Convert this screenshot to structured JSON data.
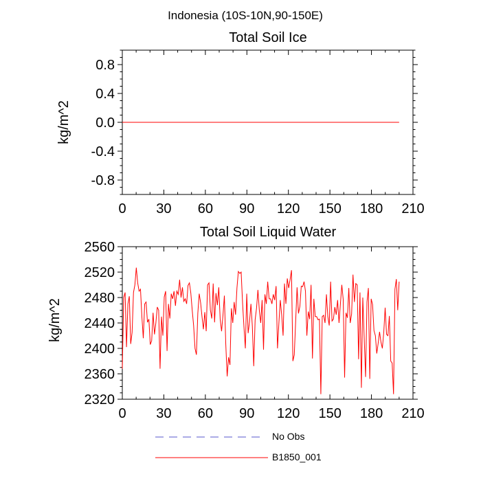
{
  "figure": {
    "title": "Indonesia (10S-10N,90-150E)"
  },
  "legend": {
    "items": [
      {
        "label": "No Obs",
        "color": "#5555cc",
        "style": "dashed"
      },
      {
        "label": "B1850_001",
        "color": "#ff0000",
        "style": "solid"
      }
    ]
  },
  "chart_data": [
    {
      "type": "line",
      "title": "Total Soil Ice",
      "xlabel": "",
      "ylabel": "kg/m^2",
      "xlim": [
        0,
        210
      ],
      "ylim": [
        -1.0,
        1.0
      ],
      "xticks": [
        0,
        30,
        60,
        90,
        120,
        150,
        180,
        210
      ],
      "yticks": [
        -0.8,
        -0.4,
        0.0,
        0.4,
        0.8
      ],
      "ytick_labels": [
        "-0.8",
        "-0.4",
        "0.0",
        "0.4",
        "0.8"
      ],
      "series": [
        {
          "name": "B1850_001",
          "color": "#ff0000",
          "x_start": 0,
          "x_end": 200,
          "values": [
            0.0,
            0.0
          ]
        }
      ]
    },
    {
      "type": "line",
      "title": "Total Soil Liquid Water",
      "xlabel": "",
      "ylabel": "kg/m^2",
      "xlim": [
        0,
        210
      ],
      "ylim": [
        2320,
        2560
      ],
      "xticks": [
        0,
        30,
        60,
        90,
        120,
        150,
        180,
        210
      ],
      "yticks": [
        2320,
        2360,
        2400,
        2440,
        2480,
        2520,
        2560
      ],
      "ytick_labels": [
        "2320",
        "2360",
        "2400",
        "2440",
        "2480",
        "2520",
        "2560"
      ],
      "series": [
        {
          "name": "B1850_001",
          "color": "#ff0000",
          "x_start": 0,
          "x_end": 200,
          "values": [
            2368,
            2480,
            2488,
            2402,
            2470,
            2482,
            2407,
            2425,
            2488,
            2500,
            2527,
            2503,
            2490,
            2493,
            2450,
            2416,
            2470,
            2473,
            2441,
            2446,
            2406,
            2412,
            2456,
            2422,
            2440,
            2465,
            2460,
            2368,
            2450,
            2420,
            2481,
            2490,
            2396,
            2470,
            2447,
            2486,
            2478,
            2490,
            2467,
            2490,
            2485,
            2508,
            2480,
            2496,
            2474,
            2478,
            2470,
            2499,
            2503,
            2487,
            2460,
            2436,
            2400,
            2390,
            2455,
            2486,
            2472,
            2450,
            2430,
            2457,
            2427,
            2500,
            2503,
            2460,
            2447,
            2502,
            2441,
            2487,
            2468,
            2496,
            2446,
            2427,
            2452,
            2483,
            2407,
            2356,
            2386,
            2374,
            2463,
            2440,
            2473,
            2453,
            2495,
            2521,
            2518,
            2520,
            2472,
            2434,
            2400,
            2486,
            2424,
            2442,
            2470,
            2435,
            2372,
            2445,
            2463,
            2492,
            2460,
            2440,
            2476,
            2398,
            2485,
            2470,
            2505,
            2478,
            2478,
            2470,
            2485,
            2476,
            2498,
            2400,
            2440,
            2476,
            2452,
            2420,
            2502,
            2470,
            2510,
            2495,
            2508,
            2523,
            2380,
            2390,
            2443,
            2496,
            2455,
            2466,
            2498,
            2497,
            2505,
            2490,
            2420,
            2458,
            2446,
            2500,
            2384,
            2478,
            2450,
            2450,
            2445,
            2446,
            2328,
            2450,
            2452,
            2440,
            2485,
            2450,
            2436,
            2505,
            2443,
            2446,
            2465,
            2453,
            2476,
            2440,
            2470,
            2500,
            2477,
            2354,
            2456,
            2448,
            2495,
            2440,
            2454,
            2516,
            2473,
            2502,
            2500,
            2383,
            2488,
            2338,
            2480,
            2418,
            2355,
            2473,
            2495,
            2352,
            2478,
            2469,
            2428,
            2420,
            2392,
            2408,
            2426,
            2410,
            2400,
            2425,
            2464,
            2422,
            2420,
            2451,
            2380,
            2377,
            2328,
            2493,
            2509,
            2460,
            2505
          ]
        }
      ]
    }
  ]
}
